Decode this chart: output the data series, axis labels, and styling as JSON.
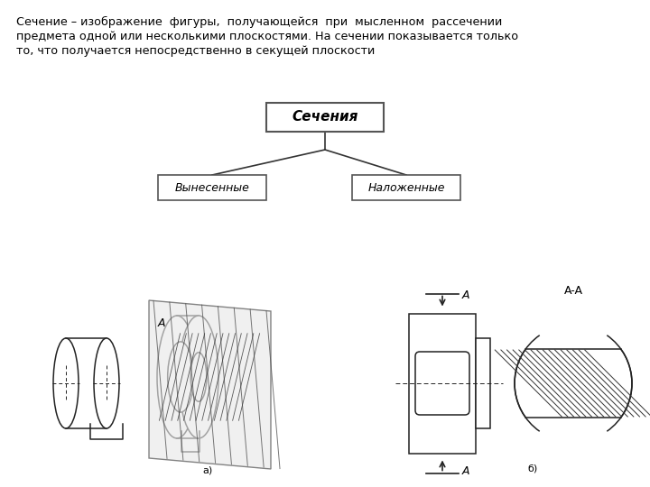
{
  "background_color": "#ffffff",
  "text_color": "#000000",
  "fig_width": 7.2,
  "fig_height": 5.4,
  "dpi": 100,
  "header_text_line1": "Сечение – изображение  фигуры,  получающейся  при  мысленном  рассечении",
  "header_text_line2": "предмета одной или несколькими плоскостями. На сечении показывается только",
  "header_text_line3": "то, что получается непосредственно в секущей плоскости",
  "label_secheniya": "Сечения",
  "label_vynesennye": "Вынесенные",
  "label_nalozhenye": "Наложенные",
  "label_a_left": "а)",
  "label_b_right": "б)",
  "label_A": "A",
  "label_AA": "A-A"
}
